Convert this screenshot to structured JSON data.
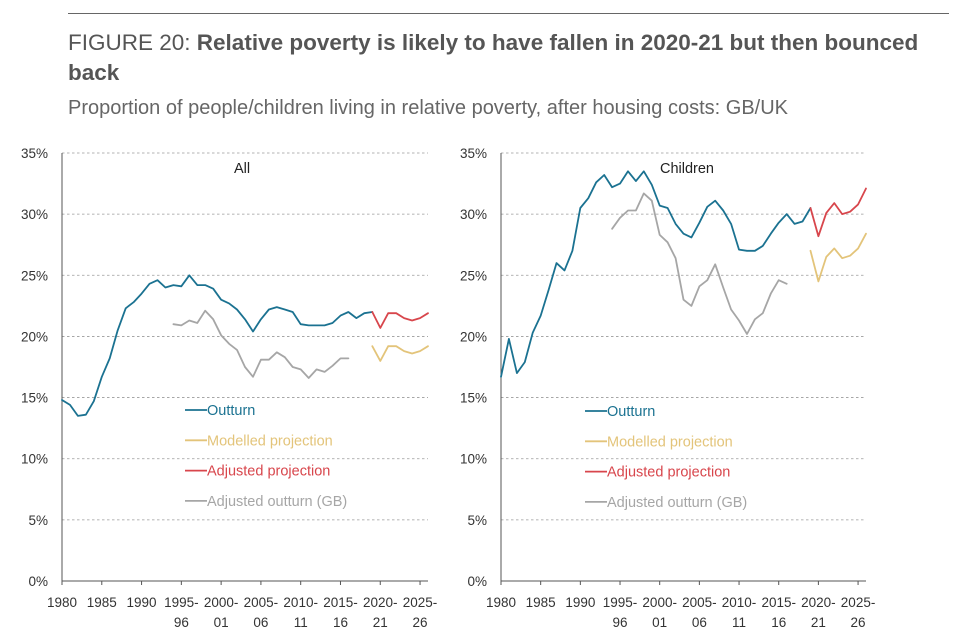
{
  "header": {
    "figure_label": "FIGURE 20:",
    "title": "Relative poverty is likely to have fallen in 2020-21 but then bounced back",
    "subtitle": "Proportion of people/children living in relative poverty, after housing costs: GB/UK"
  },
  "colors": {
    "outturn": "#1b7291",
    "modelled": "#e3c47a",
    "adjusted_projection": "#d8464c",
    "adjusted_outturn": "#a6a6a6",
    "grid": "#9a9a9a",
    "axis": "#555555"
  },
  "chart_data": [
    {
      "type": "line",
      "title": "All",
      "xlabel": "",
      "ylabel": "",
      "ylim": [
        0,
        35
      ],
      "yticks": [
        "0%",
        "5%",
        "10%",
        "15%",
        "20%",
        "25%",
        "30%",
        "35%"
      ],
      "xticks": [
        {
          "x": 1980,
          "l1": "1980",
          "l2": ""
        },
        {
          "x": 1985,
          "l1": "1985",
          "l2": ""
        },
        {
          "x": 1990,
          "l1": "1990",
          "l2": ""
        },
        {
          "x": 1995,
          "l1": "1995-",
          "l2": "96"
        },
        {
          "x": 2000,
          "l1": "2000-",
          "l2": "01"
        },
        {
          "x": 2005,
          "l1": "2005-",
          "l2": "06"
        },
        {
          "x": 2010,
          "l1": "2010-",
          "l2": "11"
        },
        {
          "x": 2015,
          "l1": "2015-",
          "l2": "16"
        },
        {
          "x": 2020,
          "l1": "2020-",
          "l2": "21"
        },
        {
          "x": 2025,
          "l1": "2025-",
          "l2": "26"
        }
      ],
      "grid": "horizontal dashed",
      "legend": "lower-center",
      "series": [
        {
          "name": "Outturn",
          "color_key": "outturn",
          "points": [
            [
              1980,
              14.8
            ],
            [
              1981,
              14.4
            ],
            [
              1982,
              13.5
            ],
            [
              1983,
              13.6
            ],
            [
              1984,
              14.7
            ],
            [
              1985,
              16.7
            ],
            [
              1986,
              18.2
            ],
            [
              1987,
              20.5
            ],
            [
              1988,
              22.3
            ],
            [
              1989,
              22.8
            ],
            [
              1990,
              23.5
            ],
            [
              1991,
              24.3
            ],
            [
              1992,
              24.6
            ],
            [
              1993,
              24.0
            ],
            [
              1994,
              24.2
            ],
            [
              1995,
              24.1
            ],
            [
              1996,
              25.0
            ],
            [
              1997,
              24.2
            ],
            [
              1998,
              24.2
            ],
            [
              1999,
              23.9
            ],
            [
              2000,
              23.0
            ],
            [
              2001,
              22.7
            ],
            [
              2002,
              22.2
            ],
            [
              2003,
              21.4
            ],
            [
              2004,
              20.4
            ],
            [
              2005,
              21.4
            ],
            [
              2006,
              22.2
            ],
            [
              2007,
              22.4
            ],
            [
              2008,
              22.2
            ],
            [
              2009,
              22.0
            ],
            [
              2010,
              21.0
            ],
            [
              2011,
              20.9
            ],
            [
              2012,
              20.9
            ],
            [
              2013,
              20.9
            ],
            [
              2014,
              21.1
            ],
            [
              2015,
              21.7
            ],
            [
              2016,
              22.0
            ],
            [
              2017,
              21.5
            ],
            [
              2018,
              21.9
            ],
            [
              2019,
              22.0
            ]
          ]
        },
        {
          "name": "Modelled projection",
          "color_key": "modelled",
          "points": [
            [
              2019,
              19.2
            ],
            [
              2020,
              18.0
            ],
            [
              2021,
              19.2
            ],
            [
              2022,
              19.2
            ],
            [
              2023,
              18.8
            ],
            [
              2024,
              18.6
            ],
            [
              2025,
              18.8
            ],
            [
              2026,
              19.2
            ]
          ]
        },
        {
          "name": "Adjusted projection",
          "color_key": "adjusted_projection",
          "points": [
            [
              2019,
              22.0
            ],
            [
              2020,
              20.7
            ],
            [
              2021,
              21.9
            ],
            [
              2022,
              21.9
            ],
            [
              2023,
              21.5
            ],
            [
              2024,
              21.3
            ],
            [
              2025,
              21.5
            ],
            [
              2026,
              21.9
            ]
          ]
        },
        {
          "name": "Adjusted outturn (GB)",
          "color_key": "adjusted_outturn",
          "points": [
            [
              1994,
              21.0
            ],
            [
              1995,
              20.9
            ],
            [
              1996,
              21.3
            ],
            [
              1997,
              21.1
            ],
            [
              1998,
              22.1
            ],
            [
              1999,
              21.4
            ],
            [
              2000,
              20.1
            ],
            [
              2001,
              19.4
            ],
            [
              2002,
              18.9
            ],
            [
              2003,
              17.5
            ],
            [
              2004,
              16.7
            ],
            [
              2005,
              18.1
            ],
            [
              2006,
              18.1
            ],
            [
              2007,
              18.7
            ],
            [
              2008,
              18.3
            ],
            [
              2009,
              17.5
            ],
            [
              2010,
              17.3
            ],
            [
              2011,
              16.6
            ],
            [
              2012,
              17.3
            ],
            [
              2013,
              17.1
            ],
            [
              2014,
              17.6
            ],
            [
              2015,
              18.2
            ],
            [
              2016,
              18.2
            ]
          ]
        }
      ]
    },
    {
      "type": "line",
      "title": "Children",
      "xlabel": "",
      "ylabel": "",
      "ylim": [
        0,
        35
      ],
      "yticks": [
        "0%",
        "5%",
        "10%",
        "15%",
        "20%",
        "25%",
        "30%",
        "35%"
      ],
      "xticks": [
        {
          "x": 1980,
          "l1": "1980",
          "l2": ""
        },
        {
          "x": 1985,
          "l1": "1985",
          "l2": ""
        },
        {
          "x": 1990,
          "l1": "1990",
          "l2": ""
        },
        {
          "x": 1995,
          "l1": "1995-",
          "l2": "96"
        },
        {
          "x": 2000,
          "l1": "2000-",
          "l2": "01"
        },
        {
          "x": 2005,
          "l1": "2005-",
          "l2": "06"
        },
        {
          "x": 2010,
          "l1": "2010-",
          "l2": "11"
        },
        {
          "x": 2015,
          "l1": "2015-",
          "l2": "16"
        },
        {
          "x": 2020,
          "l1": "2020-",
          "l2": "21"
        },
        {
          "x": 2025,
          "l1": "2025-",
          "l2": "26"
        }
      ],
      "grid": "horizontal dashed",
      "legend": "lower-center",
      "series": [
        {
          "name": "Outturn",
          "color_key": "outturn",
          "points": [
            [
              1980,
              16.7
            ],
            [
              1981,
              19.8
            ],
            [
              1982,
              17.0
            ],
            [
              1983,
              17.9
            ],
            [
              1984,
              20.3
            ],
            [
              1985,
              21.7
            ],
            [
              1986,
              23.8
            ],
            [
              1987,
              26.0
            ],
            [
              1988,
              25.4
            ],
            [
              1989,
              27.0
            ],
            [
              1990,
              30.5
            ],
            [
              1991,
              31.3
            ],
            [
              1992,
              32.6
            ],
            [
              1993,
              33.2
            ],
            [
              1994,
              32.2
            ],
            [
              1995,
              32.5
            ],
            [
              1996,
              33.5
            ],
            [
              1997,
              32.7
            ],
            [
              1998,
              33.5
            ],
            [
              1999,
              32.4
            ],
            [
              2000,
              30.7
            ],
            [
              2001,
              30.5
            ],
            [
              2002,
              29.2
            ],
            [
              2003,
              28.4
            ],
            [
              2004,
              28.1
            ],
            [
              2005,
              29.3
            ],
            [
              2006,
              30.6
            ],
            [
              2007,
              31.1
            ],
            [
              2008,
              30.3
            ],
            [
              2009,
              29.2
            ],
            [
              2010,
              27.1
            ],
            [
              2011,
              27.0
            ],
            [
              2012,
              27.0
            ],
            [
              2013,
              27.4
            ],
            [
              2014,
              28.4
            ],
            [
              2015,
              29.3
            ],
            [
              2016,
              30.0
            ],
            [
              2017,
              29.2
            ],
            [
              2018,
              29.4
            ],
            [
              2019,
              30.5
            ]
          ]
        },
        {
          "name": "Modelled projection",
          "color_key": "modelled",
          "points": [
            [
              2019,
              27.0
            ],
            [
              2020,
              24.5
            ],
            [
              2021,
              26.5
            ],
            [
              2022,
              27.2
            ],
            [
              2023,
              26.4
            ],
            [
              2024,
              26.6
            ],
            [
              2025,
              27.2
            ],
            [
              2026,
              28.4
            ]
          ]
        },
        {
          "name": "Adjusted projection",
          "color_key": "adjusted_projection",
          "points": [
            [
              2019,
              30.5
            ],
            [
              2020,
              28.2
            ],
            [
              2021,
              30.1
            ],
            [
              2022,
              30.9
            ],
            [
              2023,
              30.0
            ],
            [
              2024,
              30.2
            ],
            [
              2025,
              30.8
            ],
            [
              2026,
              32.1
            ]
          ]
        },
        {
          "name": "Adjusted outturn (GB)",
          "color_key": "adjusted_outturn",
          "points": [
            [
              1994,
              28.8
            ],
            [
              1995,
              29.7
            ],
            [
              1996,
              30.3
            ],
            [
              1997,
              30.3
            ],
            [
              1998,
              31.7
            ],
            [
              1999,
              31.1
            ],
            [
              2000,
              28.3
            ],
            [
              2001,
              27.7
            ],
            [
              2002,
              26.4
            ],
            [
              2003,
              23.0
            ],
            [
              2004,
              22.5
            ],
            [
              2005,
              24.1
            ],
            [
              2006,
              24.6
            ],
            [
              2007,
              25.9
            ],
            [
              2008,
              24.0
            ],
            [
              2009,
              22.2
            ],
            [
              2010,
              21.3
            ],
            [
              2011,
              20.2
            ],
            [
              2012,
              21.4
            ],
            [
              2013,
              21.9
            ],
            [
              2014,
              23.5
            ],
            [
              2015,
              24.6
            ],
            [
              2016,
              24.3
            ]
          ]
        }
      ]
    }
  ]
}
